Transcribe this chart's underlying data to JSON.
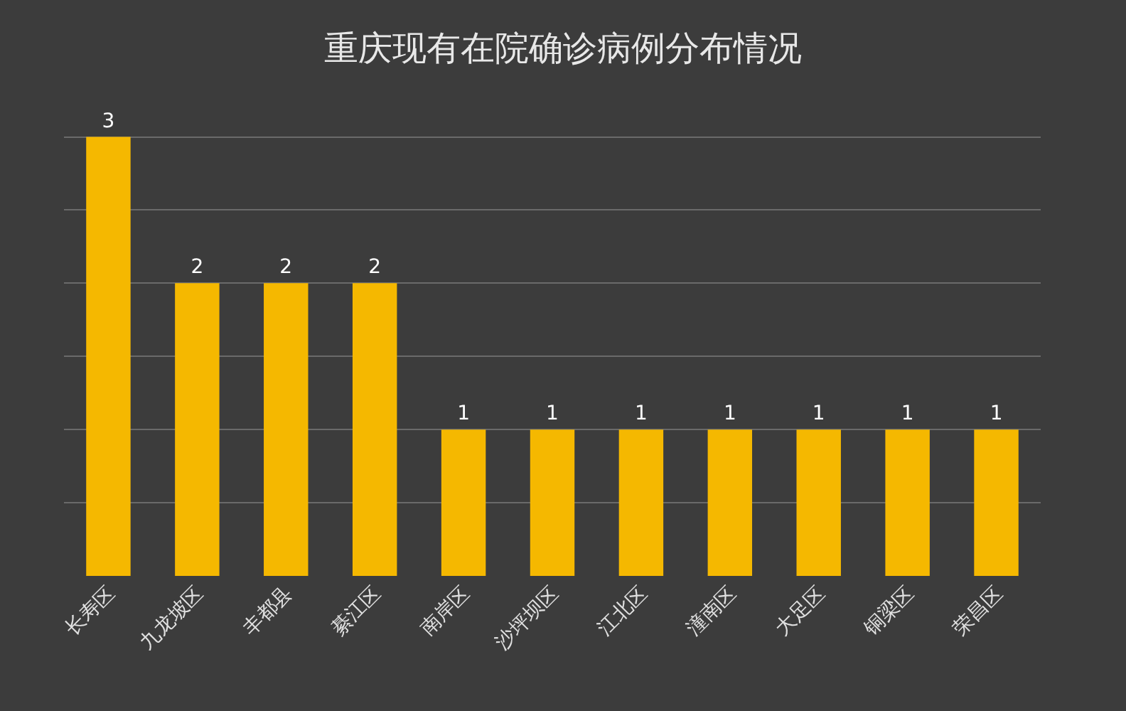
{
  "chart_data": {
    "type": "bar",
    "title": "重庆现有在院确诊病例分布情况",
    "categories": [
      "长寿区",
      "九龙坡区",
      "丰都县",
      "綦江区",
      "南岸区",
      "沙坪坝区",
      "江北区",
      "潼南区",
      "大足区",
      "铜梁区",
      "荣昌区"
    ],
    "values": [
      3,
      2,
      2,
      2,
      1,
      1,
      1,
      1,
      1,
      1,
      1
    ],
    "color": "#f5b800",
    "data_labels": true,
    "tick_labels": "x",
    "grid": "y"
  }
}
